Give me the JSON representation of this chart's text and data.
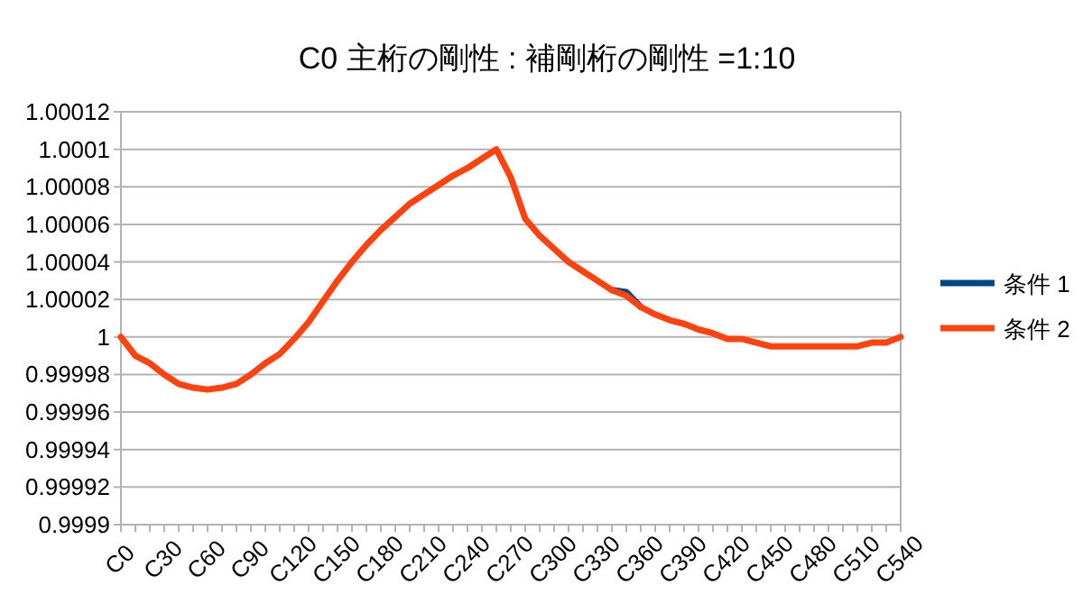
{
  "chart_data": {
    "type": "line",
    "title": "C0  主桁の剛性 : 補剛桁の剛性 =1:10",
    "categories": [
      "C0",
      null,
      null,
      "C30",
      null,
      null,
      "C60",
      null,
      null,
      "C90",
      null,
      null,
      "C120",
      null,
      null,
      "C150",
      null,
      null,
      "C180",
      null,
      null,
      "C210",
      null,
      null,
      "C240",
      null,
      null,
      "C270",
      null,
      null,
      "C300",
      null,
      null,
      "C330",
      null,
      null,
      "C360",
      null,
      null,
      "C390",
      null,
      null,
      "C420",
      null,
      null,
      "C450",
      null,
      null,
      "C480",
      null,
      null,
      "C510",
      null,
      null,
      "C540"
    ],
    "series": [
      {
        "name": "条件 1",
        "color": "#004586",
        "values": [
          null,
          null,
          null,
          null,
          null,
          null,
          null,
          null,
          null,
          null,
          null,
          null,
          null,
          null,
          null,
          null,
          null,
          null,
          null,
          null,
          null,
          null,
          null,
          null,
          null,
          null,
          null,
          null,
          null,
          null,
          null,
          null,
          null,
          null,
          1.000025,
          1.000024,
          1.000016,
          null,
          null,
          null,
          null,
          null,
          null,
          null,
          null,
          null,
          null,
          null,
          null,
          null,
          null,
          null,
          null,
          null,
          null
        ]
      },
      {
        "name": "条件 2",
        "color": "#ff420e",
        "values": [
          1.0,
          0.99999,
          0.999986,
          0.99998,
          0.999975,
          0.999973,
          0.999972,
          0.999973,
          0.999975,
          0.99998,
          0.999986,
          0.999991,
          0.999999,
          1.000008,
          1.000019,
          1.00003,
          1.00004,
          1.000049,
          1.000057,
          1.000064,
          1.000071,
          1.000076,
          1.000081,
          1.000086,
          1.00009,
          1.000095,
          1.0001,
          1.000085,
          1.000063,
          1.000054,
          1.000047,
          1.00004,
          1.000035,
          1.00003,
          1.000025,
          1.000022,
          1.000016,
          1.000012,
          1.000009,
          1.000007,
          1.000004,
          1.000002,
          0.999999,
          0.999999,
          0.999997,
          0.999995,
          0.999995,
          0.999995,
          0.999995,
          0.999995,
          0.999995,
          0.999995,
          0.999997,
          0.999997,
          1.0
        ]
      }
    ],
    "ylim": [
      0.9999,
      1.00012
    ],
    "yticks": [
      0.9999,
      0.99992,
      0.99994,
      0.99996,
      0.99998,
      1,
      1.00002,
      1.00004,
      1.00006,
      1.00008,
      1.0001,
      1.00012
    ],
    "grid": "y",
    "legend": "right"
  }
}
